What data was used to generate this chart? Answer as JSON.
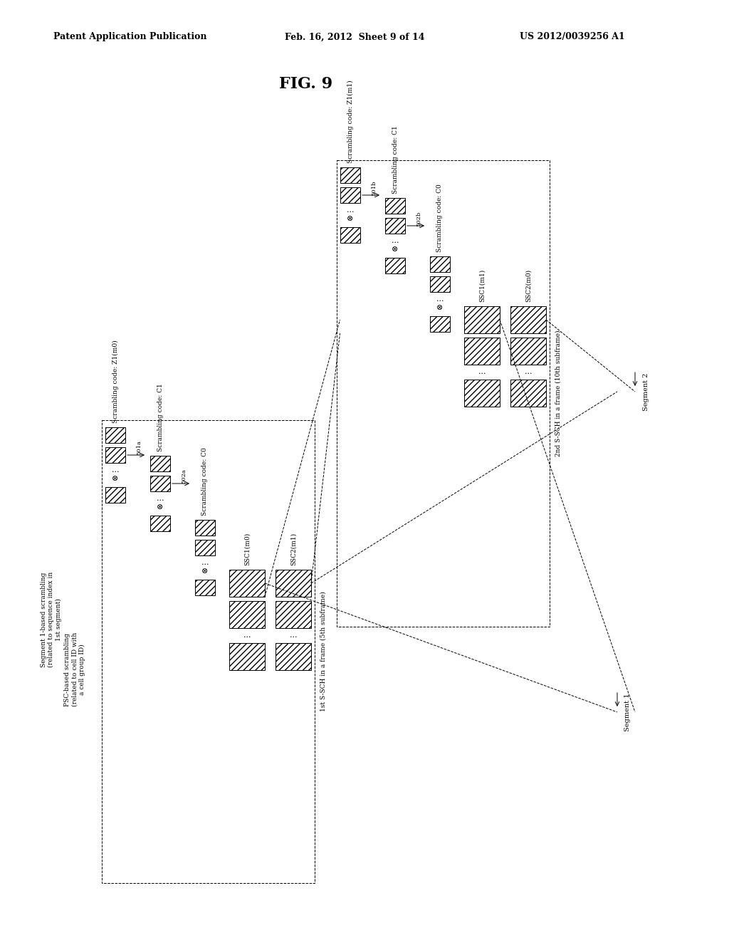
{
  "header_left": "Patent Application Publication",
  "header_center": "Feb. 16, 2012  Sheet 9 of 14",
  "header_right": "US 2012/0039256 A1",
  "title": "FIG. 9",
  "background": "#ffffff"
}
